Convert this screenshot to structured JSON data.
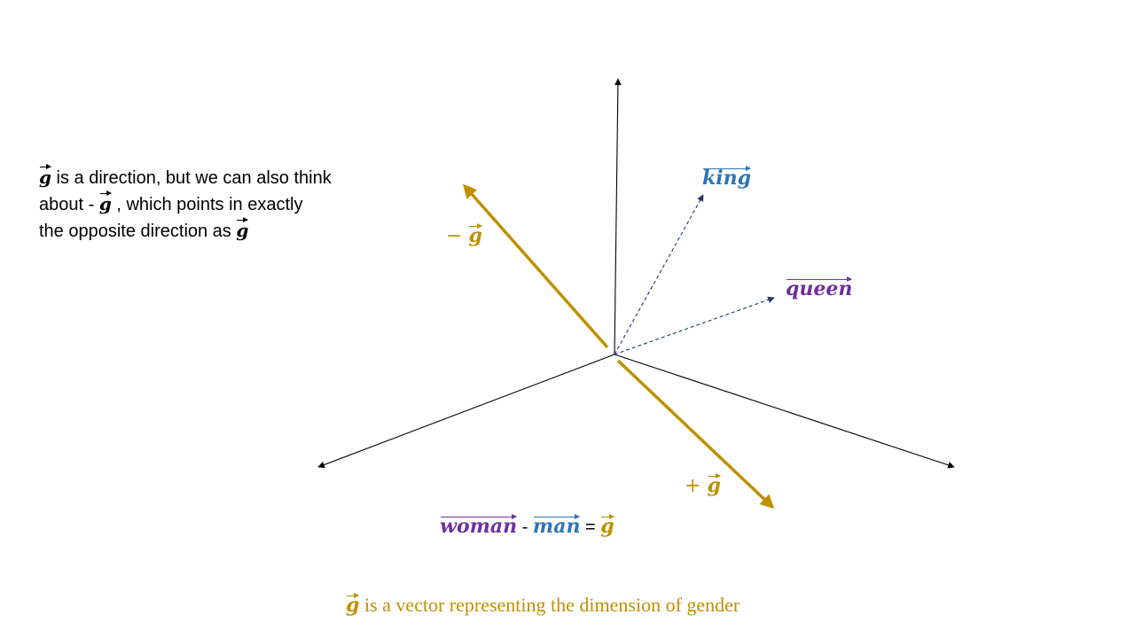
{
  "colors": {
    "gold": "#bf9000",
    "blue": "#2e75b6",
    "purple": "#7030a0",
    "navy": "#1f3864",
    "black": "#000000"
  },
  "note": {
    "line1_sym": "g",
    "line1_text": " is a direction, but we can also think",
    "line2_pre": "about  - ",
    "line2_sym": "g",
    "line2_text": " , which points in exactly",
    "line3_text": "the opposite direction as ",
    "line3_sym": "g"
  },
  "labels": {
    "king": "king",
    "queen": "queen",
    "minus_g_sign": "− ",
    "minus_g_sym": "g",
    "plus_g_sign": "+ ",
    "plus_g_sym": "g"
  },
  "equation": {
    "woman": "woman",
    "minus": " - ",
    "man": "man",
    "equals": " = ",
    "g": "g"
  },
  "caption": {
    "sym": "g",
    "text": " is a vector representing the dimension of gender"
  }
}
